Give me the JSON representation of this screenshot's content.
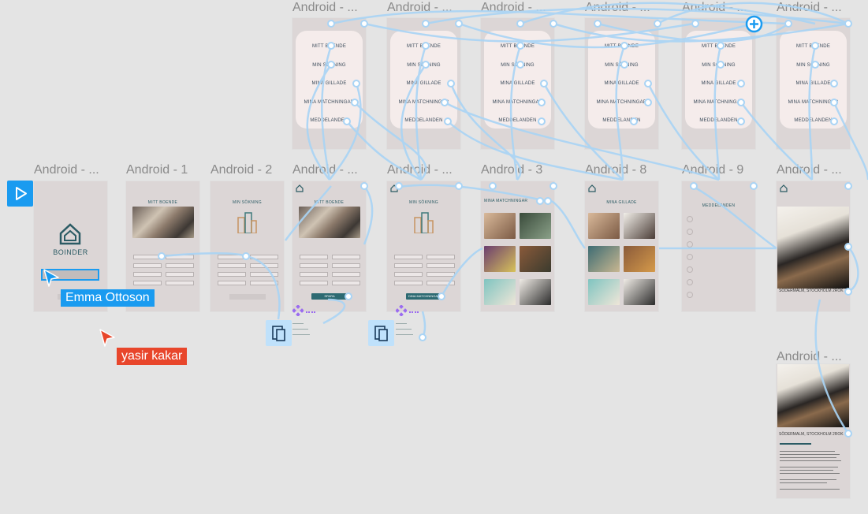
{
  "frames": {
    "top": [
      {
        "title": "Android - ...",
        "menu": [
          "MITT BOENDE",
          "MIN SÖKNING",
          "MINA GILLADE",
          "MINA MATCHNINGAR",
          "MEDDELANDEN"
        ]
      },
      {
        "title": "Android - ...",
        "menu": [
          "MITT BOENDE",
          "MIN SÖKNING",
          "MINA GILLADE",
          "MINA MATCHNINGAR",
          "MEDDELANDEN"
        ]
      },
      {
        "title": "Android - ...",
        "menu": [
          "MITT BOENDE",
          "MIN SÖKNING",
          "MINA GILLADE",
          "MINA MATCHNINGAR",
          "MEDDELANDEN"
        ]
      },
      {
        "title": "Android - ...",
        "menu": [
          "MITT BOENDE",
          "MIN SÖKNING",
          "MINA GILLADE",
          "MINA MATCHNINGAR",
          "MEDDELANDEN"
        ]
      },
      {
        "title": "Android - ...",
        "menu": [
          "MITT BOENDE",
          "MIN SÖKNING",
          "MINA GILLADE",
          "MINA MATCHNINGAR",
          "MEDDELANDEN"
        ]
      },
      {
        "title": "Android - ...",
        "menu": [
          "MITT BOENDE",
          "MIN SÖKNING",
          "MINA GILLADE",
          "MINA MATCHNINGAR",
          "MEDDELANDEN"
        ]
      }
    ],
    "middle": [
      {
        "title": "Android - ...",
        "logo_text": "BOINDER"
      },
      {
        "title": "Android - 1",
        "heading": "MITT BOENDE"
      },
      {
        "title": "Android - 2",
        "heading": "MIN SÖKNING"
      },
      {
        "title": "Android - ...",
        "heading": "MITT BOENDE",
        "button": "SPARA"
      },
      {
        "title": "Android - ...",
        "heading": "MIN SÖKNING",
        "button": "DINA MATCHNINGAR"
      },
      {
        "title": "Android - 3",
        "heading": "MINA MATCHNINGAR"
      },
      {
        "title": "Android - 8",
        "heading": "MINA GILLADE"
      },
      {
        "title": "Android - 9",
        "heading": "MEDDELANDEN"
      },
      {
        "title": "Android - ...",
        "caption": "SÖDERMALM, STOCKHOLM 2ROK"
      }
    ],
    "bottom": {
      "title": "Android - ...",
      "caption": "SÖDERMALM, STOCKHOLM 2ROK"
    }
  },
  "cursors": {
    "emma": {
      "label": "Emma Ottoson",
      "color": "#1a9bf0"
    },
    "yasir": {
      "label": "yasir kakar",
      "color": "#e8462b"
    }
  },
  "icons": [
    "play-icon",
    "add-circle-icon",
    "component-icon",
    "component-instance-icon"
  ],
  "colors": {
    "accent": "#1a9bf0",
    "link": "#a9d4f5",
    "frame_bg": "#dcd6d6",
    "brand": "#2b5b64"
  }
}
